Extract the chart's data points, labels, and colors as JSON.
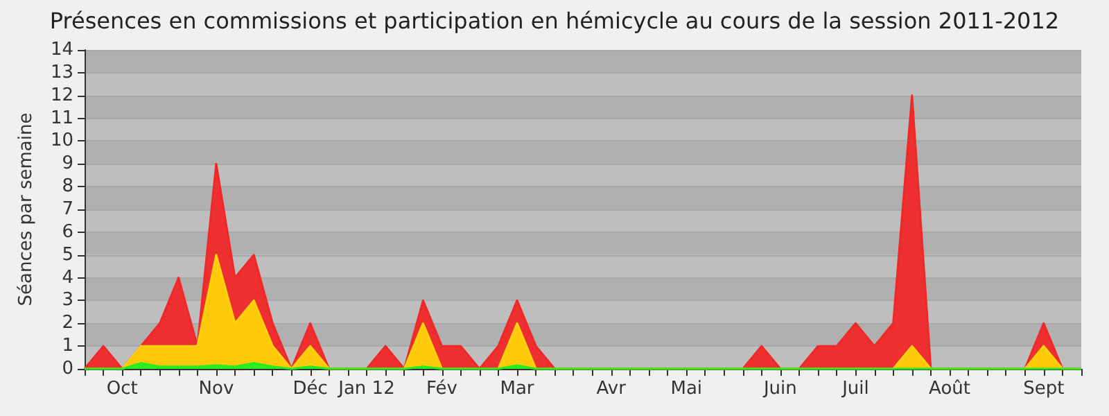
{
  "chart_data": {
    "type": "area",
    "title": "Présences en commissions et participation en hémicycle au cours de la session 2011-2012",
    "ylabel": "Séances par semaine",
    "categories": [
      null,
      null,
      "Oct",
      null,
      null,
      null,
      null,
      "Nov",
      null,
      null,
      null,
      null,
      "Déc",
      null,
      null,
      "Jan 12",
      null,
      null,
      null,
      "Fév",
      null,
      null,
      null,
      "Mar",
      null,
      null,
      null,
      null,
      "Avr",
      null,
      null,
      null,
      "Mai",
      null,
      null,
      null,
      null,
      "Juin",
      null,
      null,
      null,
      "Juil",
      null,
      null,
      null,
      null,
      "Août",
      null,
      null,
      null,
      null,
      "Sept",
      null,
      null
    ],
    "series": [
      {
        "color": "#f02828",
        "values": [
          0,
          1,
          0,
          1,
          2,
          4,
          1,
          9,
          4,
          5,
          2,
          0,
          2,
          0,
          0,
          0,
          1,
          0,
          3,
          1,
          1,
          0,
          1,
          3,
          1,
          0,
          0,
          0,
          0,
          0,
          0,
          0,
          0,
          0,
          0,
          0,
          1,
          0,
          0,
          1,
          1,
          2,
          1,
          2,
          12,
          0,
          0,
          0,
          0,
          0,
          0,
          2,
          0,
          0
        ]
      },
      {
        "color": "#ffd20a",
        "values": [
          0,
          0,
          0,
          1,
          1,
          1,
          1,
          5,
          2,
          3,
          1,
          0,
          1,
          0,
          0,
          0,
          0,
          0,
          2,
          0,
          0,
          0,
          0,
          2,
          0,
          0,
          0,
          0,
          0,
          0,
          0,
          0,
          0,
          0,
          0,
          0,
          0,
          0,
          0,
          0,
          0,
          0,
          0,
          0,
          1,
          0,
          0,
          0,
          0,
          0,
          0,
          1,
          0,
          0
        ]
      },
      {
        "color": "#22ee22",
        "values": [
          0,
          0,
          0,
          0.25,
          0.1,
          0.1,
          0.1,
          0.15,
          0.1,
          0.25,
          0.1,
          0,
          0.1,
          0,
          0,
          0,
          0,
          0,
          0.1,
          0,
          0,
          0,
          0,
          0.15,
          0,
          0,
          0,
          0,
          0,
          0,
          0,
          0,
          0,
          0,
          0,
          0,
          0,
          0,
          0,
          0,
          0,
          0,
          0,
          0,
          0,
          0,
          0,
          0,
          0,
          0,
          0,
          0,
          0,
          0
        ]
      }
    ],
    "ylim": [
      0,
      14
    ],
    "yticks": [
      0,
      1,
      2,
      3,
      4,
      5,
      6,
      7,
      8,
      9,
      10,
      11,
      12,
      13,
      14
    ],
    "grid": true,
    "marker": "none"
  }
}
